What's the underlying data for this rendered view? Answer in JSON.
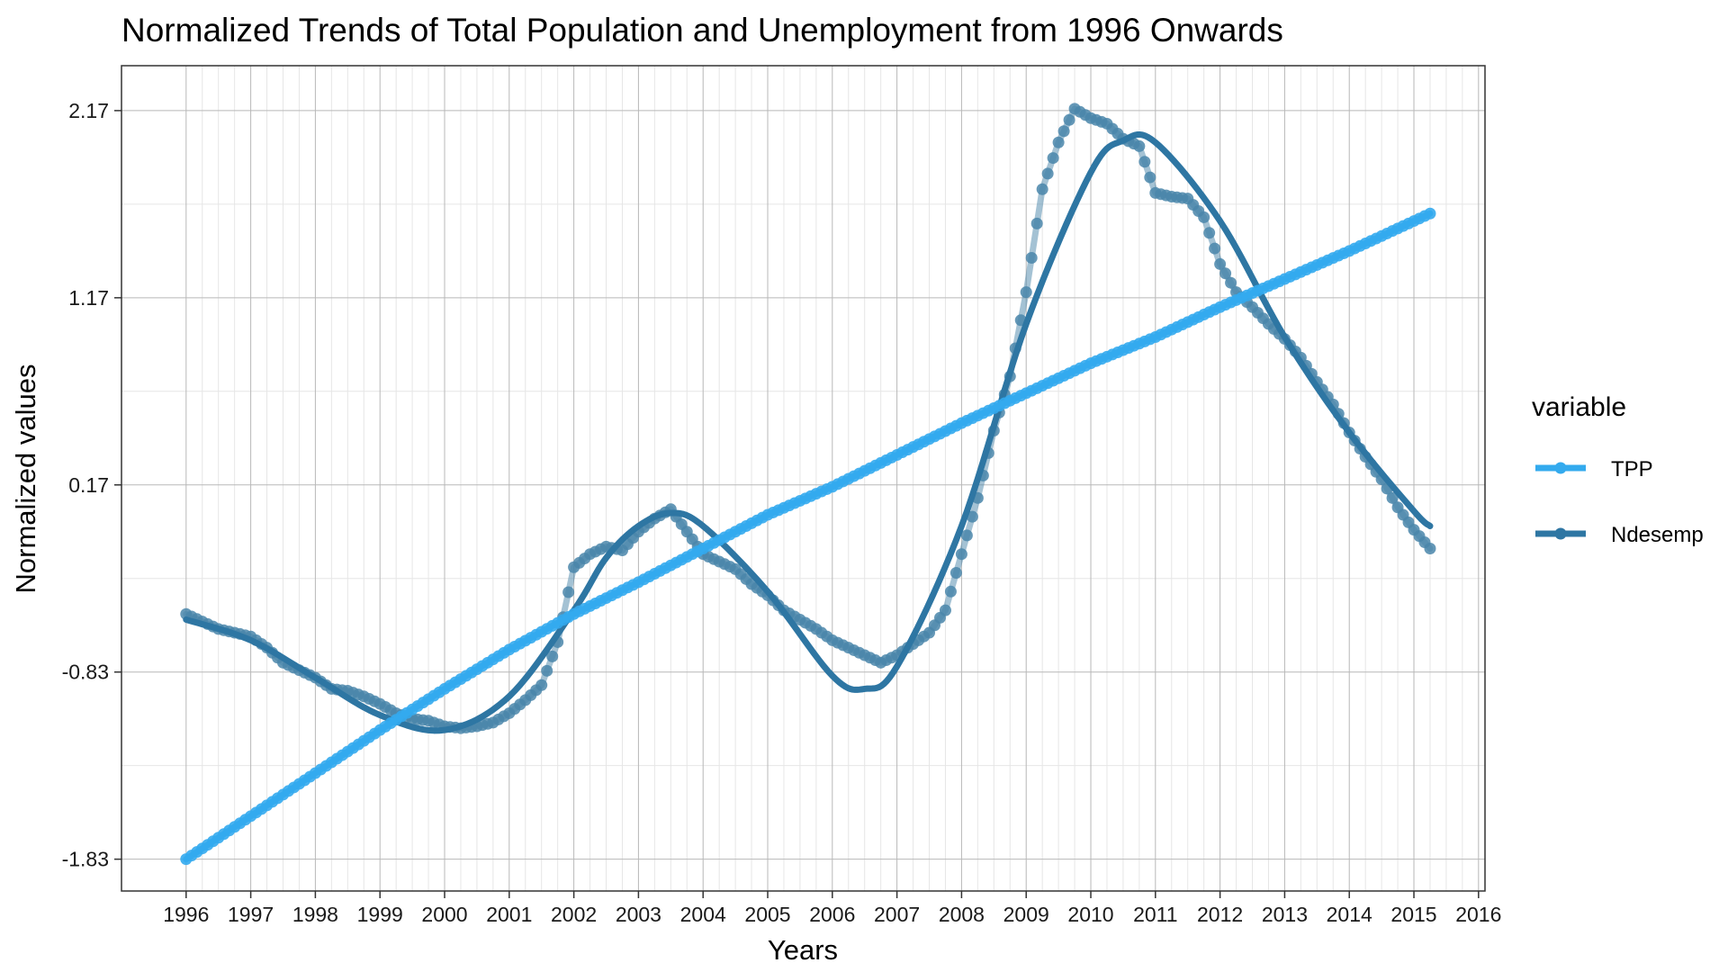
{
  "chart_data": {
    "type": "line",
    "title": "Normalized Trends of Total Population and Unemployment from 1996 Onwards",
    "xlabel": "Years",
    "ylabel": "Normalized values",
    "xlim": [
      1995.0,
      2016.1
    ],
    "ylim": [
      -2.0,
      2.41
    ],
    "x_ticks": [
      "1996",
      "1997",
      "1998",
      "1999",
      "2000",
      "2001",
      "2002",
      "2003",
      "2004",
      "2005",
      "2006",
      "2007",
      "2008",
      "2009",
      "2010",
      "2011",
      "2012",
      "2013",
      "2014",
      "2015",
      "2016"
    ],
    "y_ticks": [
      "-1.83",
      "-0.83",
      "0.17",
      "1.17",
      "2.17"
    ],
    "grid": true,
    "legend": {
      "title": "variable",
      "position": "right"
    },
    "colors": {
      "TPP": "#33aaee",
      "Ndesemp": "#2e76a3",
      "Ndesemp_raw": "#4a86aa"
    },
    "series": [
      {
        "name": "TPP",
        "style": "line+points",
        "points": [
          [
            1996.0,
            -1.83
          ],
          [
            1997.0,
            -1.6
          ],
          [
            1998.0,
            -1.37
          ],
          [
            1999.0,
            -1.14
          ],
          [
            2000.0,
            -0.92
          ],
          [
            2001.0,
            -0.71
          ],
          [
            2002.0,
            -0.52
          ],
          [
            2003.0,
            -0.35
          ],
          [
            2004.0,
            -0.17
          ],
          [
            2005.0,
            0.01
          ],
          [
            2006.0,
            0.16
          ],
          [
            2007.0,
            0.33
          ],
          [
            2008.0,
            0.5
          ],
          [
            2009.0,
            0.66
          ],
          [
            2010.0,
            0.82
          ],
          [
            2011.0,
            0.96
          ],
          [
            2012.0,
            1.12
          ],
          [
            2013.0,
            1.27
          ],
          [
            2014.0,
            1.42
          ],
          [
            2015.0,
            1.58
          ],
          [
            2015.25,
            1.62
          ]
        ]
      },
      {
        "name": "Ndesemp",
        "style": "line+points",
        "raw_points": [
          [
            1996.0,
            -0.52
          ],
          [
            1996.25,
            -0.56
          ],
          [
            1996.5,
            -0.6
          ],
          [
            1996.75,
            -0.62
          ],
          [
            1997.0,
            -0.64
          ],
          [
            1997.25,
            -0.7
          ],
          [
            1997.5,
            -0.78
          ],
          [
            1997.75,
            -0.82
          ],
          [
            1998.0,
            -0.86
          ],
          [
            1998.25,
            -0.92
          ],
          [
            1998.5,
            -0.93
          ],
          [
            1998.75,
            -0.96
          ],
          [
            1999.0,
            -1.0
          ],
          [
            1999.25,
            -1.05
          ],
          [
            1999.5,
            -1.08
          ],
          [
            1999.75,
            -1.09
          ],
          [
            2000.0,
            -1.12
          ],
          [
            2000.25,
            -1.13
          ],
          [
            2000.5,
            -1.12
          ],
          [
            2000.75,
            -1.1
          ],
          [
            2001.0,
            -1.05
          ],
          [
            2001.25,
            -0.98
          ],
          [
            2001.5,
            -0.9
          ],
          [
            2001.75,
            -0.67
          ],
          [
            2002.0,
            -0.27
          ],
          [
            2002.25,
            -0.2
          ],
          [
            2002.5,
            -0.16
          ],
          [
            2002.75,
            -0.18
          ],
          [
            2003.0,
            -0.08
          ],
          [
            2003.25,
            -0.01
          ],
          [
            2003.5,
            0.04
          ],
          [
            2003.75,
            -0.08
          ],
          [
            2004.0,
            -0.2
          ],
          [
            2004.25,
            -0.24
          ],
          [
            2004.5,
            -0.28
          ],
          [
            2004.75,
            -0.36
          ],
          [
            2005.0,
            -0.42
          ],
          [
            2005.25,
            -0.5
          ],
          [
            2005.5,
            -0.55
          ],
          [
            2005.75,
            -0.6
          ],
          [
            2006.0,
            -0.66
          ],
          [
            2006.25,
            -0.7
          ],
          [
            2006.5,
            -0.74
          ],
          [
            2006.75,
            -0.78
          ],
          [
            2007.0,
            -0.74
          ],
          [
            2007.25,
            -0.68
          ],
          [
            2007.5,
            -0.62
          ],
          [
            2007.75,
            -0.5
          ],
          [
            2008.0,
            -0.2
          ],
          [
            2008.25,
            0.1
          ],
          [
            2008.5,
            0.46
          ],
          [
            2008.75,
            0.75
          ],
          [
            2009.0,
            1.2
          ],
          [
            2009.25,
            1.75
          ],
          [
            2009.5,
            2.0
          ],
          [
            2009.75,
            2.18
          ],
          [
            2010.0,
            2.13
          ],
          [
            2010.25,
            2.1
          ],
          [
            2010.5,
            2.02
          ],
          [
            2010.75,
            1.98
          ],
          [
            2011.0,
            1.73
          ],
          [
            2011.25,
            1.71
          ],
          [
            2011.5,
            1.7
          ],
          [
            2011.75,
            1.6
          ],
          [
            2012.0,
            1.35
          ],
          [
            2012.25,
            1.2
          ],
          [
            2012.5,
            1.12
          ],
          [
            2012.75,
            1.03
          ],
          [
            2013.0,
            0.95
          ],
          [
            2013.25,
            0.85
          ],
          [
            2013.5,
            0.72
          ],
          [
            2013.75,
            0.6
          ],
          [
            2014.0,
            0.45
          ],
          [
            2014.25,
            0.32
          ],
          [
            2014.5,
            0.2
          ],
          [
            2014.75,
            0.05
          ],
          [
            2015.0,
            -0.07
          ],
          [
            2015.25,
            -0.17
          ]
        ],
        "smooth_points": [
          [
            1996.0,
            -0.55
          ],
          [
            1997.0,
            -0.66
          ],
          [
            1998.0,
            -0.86
          ],
          [
            1999.0,
            -1.06
          ],
          [
            2000.0,
            -1.14
          ],
          [
            2001.0,
            -0.96
          ],
          [
            2002.0,
            -0.5
          ],
          [
            2002.5,
            -0.22
          ],
          [
            2003.0,
            -0.05
          ],
          [
            2003.5,
            0.02
          ],
          [
            2004.0,
            -0.05
          ],
          [
            2005.0,
            -0.4
          ],
          [
            2006.0,
            -0.85
          ],
          [
            2006.5,
            -0.92
          ],
          [
            2007.0,
            -0.8
          ],
          [
            2008.0,
            -0.05
          ],
          [
            2009.0,
            1.03
          ],
          [
            2010.0,
            1.84
          ],
          [
            2010.5,
            2.01
          ],
          [
            2011.0,
            2.0
          ],
          [
            2012.0,
            1.58
          ],
          [
            2013.0,
            0.96
          ],
          [
            2014.0,
            0.45
          ],
          [
            2015.0,
            0.03
          ],
          [
            2015.25,
            -0.05
          ]
        ]
      }
    ]
  }
}
